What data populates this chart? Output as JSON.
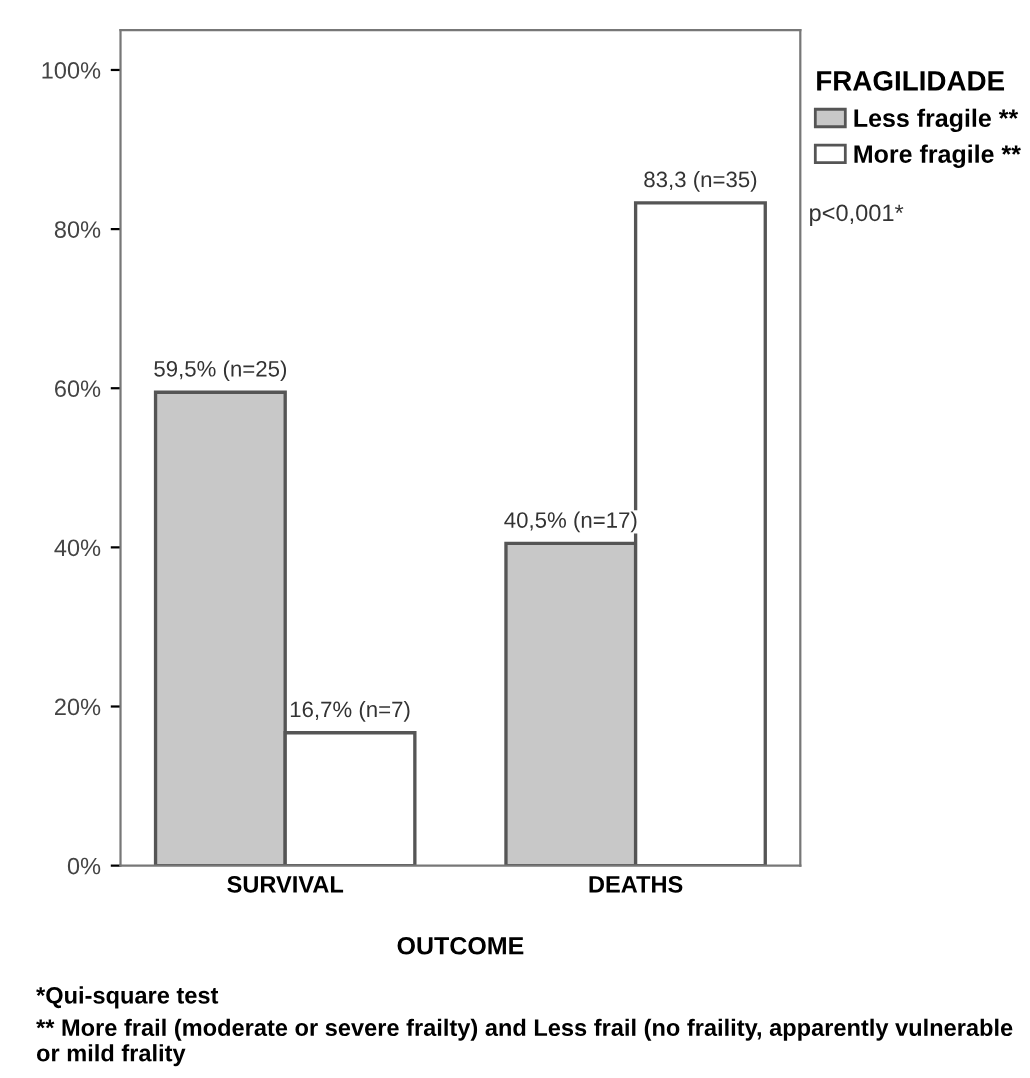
{
  "chart_data": {
    "type": "bar",
    "categories": [
      "SURVIVAL",
      "DEATHS"
    ],
    "series": [
      {
        "name": "Less fragile **",
        "color": "#c8c8c8",
        "values": [
          59.5,
          40.5
        ],
        "value_labels": [
          "59,5% (n=25)",
          "40,5% (n=17)"
        ]
      },
      {
        "name": "More fragile **",
        "color": "#ffffff",
        "values": [
          16.7,
          83.3
        ],
        "value_labels": [
          "16,7% (n=7)",
          "83,3 (n=35)"
        ]
      }
    ],
    "xlabel": "OUTCOME",
    "legend_title": "FRAGILIDADE",
    "legend": "top right",
    "grid": false,
    "ylim": [
      0,
      105
    ],
    "yticks": [
      {
        "value": 0,
        "label": "0%"
      },
      {
        "value": 20,
        "label": "20%"
      },
      {
        "value": 40,
        "label": "40%"
      },
      {
        "value": 60,
        "label": "60%"
      },
      {
        "value": 80,
        "label": "80%"
      },
      {
        "value": 100,
        "label": "100%"
      }
    ],
    "annotations": [
      "p<0,001*",
      "*Qui-square test",
      "** More frail (moderate or severe frailty) and Less frail (no fraility, apparently vulnerable or mild frality"
    ]
  }
}
